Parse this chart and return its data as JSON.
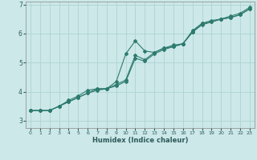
{
  "xlabel": "Humidex (Indice chaleur)",
  "bg_color": "#cce8e8",
  "grid_color": "#aacfcf",
  "line_color": "#2d7a6e",
  "xlim": [
    -0.5,
    23.5
  ],
  "ylim": [
    2.75,
    7.1
  ],
  "xticks": [
    0,
    1,
    2,
    3,
    4,
    5,
    6,
    7,
    8,
    9,
    10,
    11,
    12,
    13,
    14,
    15,
    16,
    17,
    18,
    19,
    20,
    21,
    22,
    23
  ],
  "yticks": [
    3,
    4,
    5,
    6,
    7
  ],
  "series1_x": [
    0,
    1,
    2,
    3,
    4,
    5,
    6,
    7,
    8,
    9,
    10,
    11,
    12,
    13,
    14,
    15,
    16,
    17,
    18,
    19,
    20,
    21,
    22,
    23
  ],
  "series1_y": [
    3.35,
    3.35,
    3.35,
    3.5,
    3.7,
    3.85,
    4.05,
    4.1,
    4.1,
    4.35,
    5.3,
    5.75,
    5.4,
    5.35,
    5.5,
    5.55,
    5.65,
    6.05,
    6.35,
    6.4,
    6.5,
    6.55,
    6.65,
    6.85
  ],
  "series2_x": [
    0,
    1,
    2,
    3,
    4,
    5,
    6,
    7,
    8,
    9,
    10,
    11,
    12,
    13,
    14,
    15,
    16,
    17,
    18,
    19,
    20,
    21,
    22,
    23
  ],
  "series2_y": [
    3.35,
    3.35,
    3.35,
    3.5,
    3.65,
    3.8,
    3.95,
    4.1,
    4.1,
    4.25,
    4.4,
    5.25,
    5.1,
    5.35,
    5.5,
    5.6,
    5.65,
    6.1,
    6.35,
    6.45,
    6.5,
    6.6,
    6.7,
    6.9
  ],
  "series3_x": [
    0,
    1,
    2,
    3,
    4,
    5,
    6,
    7,
    8,
    9,
    10,
    11,
    12,
    13,
    14,
    15,
    16,
    17,
    18,
    19,
    20,
    21,
    22,
    23
  ],
  "series3_y": [
    3.35,
    3.35,
    3.35,
    3.5,
    3.65,
    3.8,
    3.95,
    4.05,
    4.1,
    4.2,
    4.35,
    5.15,
    5.05,
    5.3,
    5.45,
    5.55,
    5.65,
    6.05,
    6.3,
    6.4,
    6.5,
    6.55,
    6.65,
    6.85
  ]
}
